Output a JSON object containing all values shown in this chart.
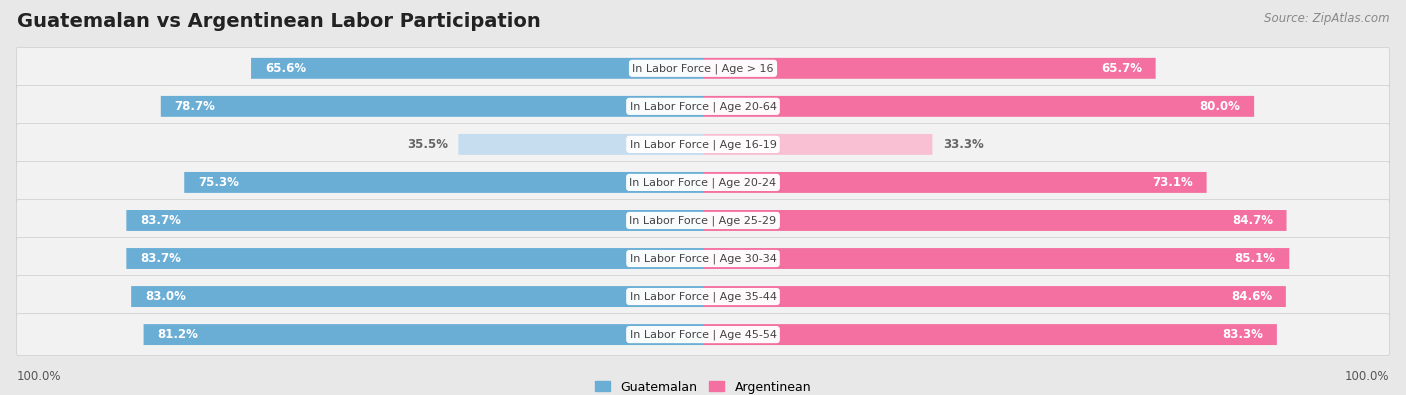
{
  "title": "Guatemalan vs Argentinean Labor Participation",
  "source": "Source: ZipAtlas.com",
  "categories": [
    "In Labor Force | Age > 16",
    "In Labor Force | Age 20-64",
    "In Labor Force | Age 16-19",
    "In Labor Force | Age 20-24",
    "In Labor Force | Age 25-29",
    "In Labor Force | Age 30-34",
    "In Labor Force | Age 35-44",
    "In Labor Force | Age 45-54"
  ],
  "guatemalan": [
    65.6,
    78.7,
    35.5,
    75.3,
    83.7,
    83.7,
    83.0,
    81.2
  ],
  "argentinean": [
    65.7,
    80.0,
    33.3,
    73.1,
    84.7,
    85.1,
    84.6,
    83.3
  ],
  "guatemalan_color_strong": "#6aaed6",
  "guatemalan_color_light": "#c6dcef",
  "argentinean_color_strong": "#f470a0",
  "argentinean_color_light": "#f9c0d4",
  "label_white": "#ffffff",
  "label_dark": "#666666",
  "background_color": "#e8e8e8",
  "row_bg": "#f2f2f2",
  "row_border": "#dddddd",
  "center_label_color": "#444444",
  "legend_guatemalan": "Guatemalan",
  "legend_argentinean": "Argentinean",
  "max_value": 100.0,
  "title_fontsize": 14,
  "label_fontsize": 8.5,
  "cat_fontsize": 8,
  "legend_fontsize": 9
}
